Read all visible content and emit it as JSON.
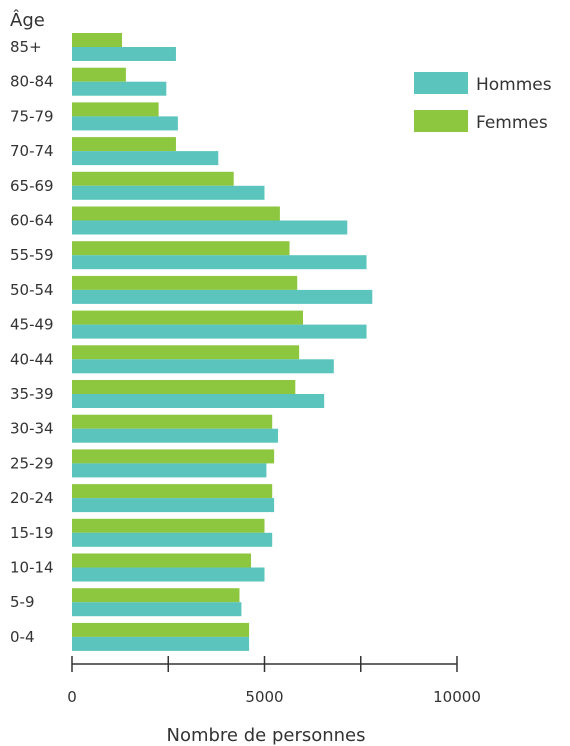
{
  "chart_data": {
    "type": "bar",
    "orientation": "horizontal",
    "y_axis_title": "Âge",
    "xlabel": "Nombre de personnes",
    "xlim": [
      0,
      10000
    ],
    "x_ticks": [
      0,
      5000,
      10000
    ],
    "x_tick_labels": [
      "0",
      "5000",
      "10000"
    ],
    "categories": [
      "85+",
      "80-84",
      "75-79",
      "70-74",
      "65-69",
      "60-64",
      "55-59",
      "50-54",
      "45-49",
      "40-44",
      "35-39",
      "30-34",
      "25-29",
      "20-24",
      "15-19",
      "10-14",
      "5-9",
      "0-4"
    ],
    "series": [
      {
        "name": "Femmes",
        "color": "#8dc63f",
        "values": [
          1300,
          1400,
          2250,
          2700,
          4200,
          5400,
          5650,
          5850,
          6000,
          5900,
          5800,
          5200,
          5250,
          5200,
          5000,
          4650,
          4350,
          4600
        ]
      },
      {
        "name": "Hommes",
        "color": "#5bc4bd",
        "values": [
          2700,
          2450,
          2750,
          3800,
          5000,
          7150,
          7650,
          7800,
          7650,
          6800,
          6550,
          5350,
          5050,
          5250,
          5200,
          5000,
          4400,
          4600
        ]
      }
    ],
    "legend": {
      "position": "top-right",
      "order": [
        "Hommes",
        "Femmes"
      ]
    },
    "grid": false
  }
}
